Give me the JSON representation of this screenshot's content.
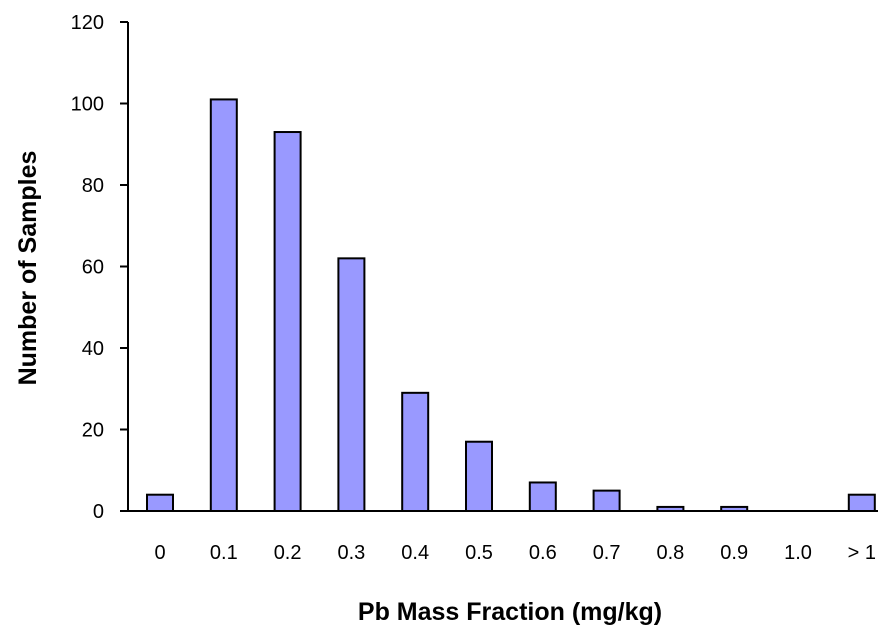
{
  "chart_data": {
    "type": "bar",
    "title": "",
    "xlabel": "Pb Mass Fraction  (mg/kg)",
    "ylabel": "Number of Samples",
    "categories": [
      "0",
      "0.1",
      "0.2",
      "0.3",
      "0.4",
      "0.5",
      "0.6",
      "0.7",
      "0.8",
      "0.9",
      "1.0",
      "> 1"
    ],
    "values": [
      4,
      101,
      93,
      62,
      29,
      17,
      7,
      5,
      1,
      1,
      0,
      4
    ],
    "ylim": [
      0,
      120
    ],
    "yticks": [
      0,
      20,
      40,
      60,
      80,
      100,
      120
    ],
    "grid": false,
    "legend": "none",
    "colors": {
      "bar_fill": "#9999ff",
      "bar_stroke": "#000000",
      "axis": "#000000"
    }
  }
}
